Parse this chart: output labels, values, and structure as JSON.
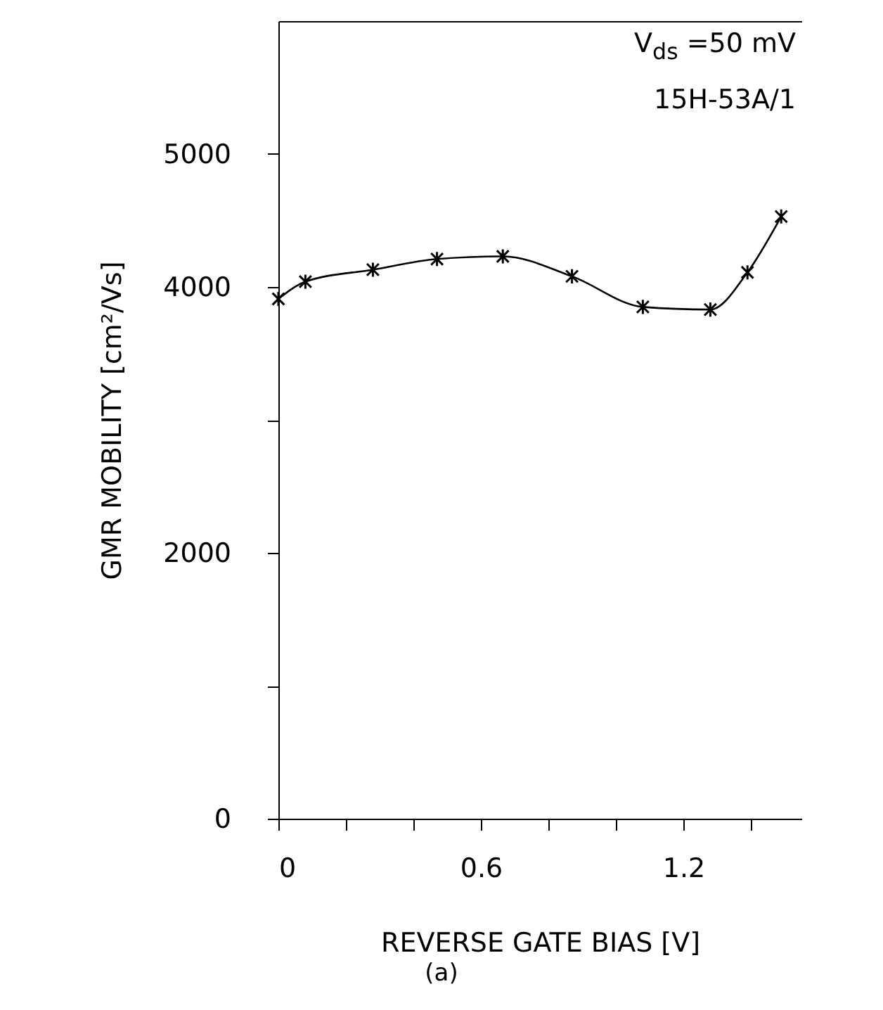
{
  "chart_data": {
    "type": "line",
    "xlabel": "REVERSE  GATE  BIAS  [V]",
    "ylabel": "GMR  MOBILITY  [cm²/Vs]",
    "annotations": [
      "V$_{ds}$ =50 mV",
      "15H-53A/1",
      "(a)"
    ],
    "x": [
      0.0,
      0.08,
      0.28,
      0.47,
      0.665,
      0.87,
      1.08,
      1.28,
      1.39,
      1.49
    ],
    "series": [
      {
        "color": "#000000",
        "values": [
          3910,
          4040,
          4130,
          4210,
          4230,
          4080,
          3850,
          3830,
          4110,
          4530
        ]
      }
    ],
    "xlim": [
      0,
      1.55
    ],
    "xticks": [
      0,
      {
        "value": 0.2,
        "label": null
      },
      {
        "value": 0.4,
        "label": null
      },
      0.6,
      {
        "value": 0.8,
        "label": null
      },
      {
        "value": 1.0,
        "label": null
      },
      1.2,
      {
        "value": 1.4,
        "label": null
      }
    ],
    "ylim": [
      0,
      6000
    ],
    "yticks": [
      0,
      {
        "value": 1000,
        "label": null
      },
      2000,
      {
        "value": 3000,
        "label": null
      },
      4000,
      5000
    ],
    "marker": "cross",
    "line_style": "solid"
  }
}
